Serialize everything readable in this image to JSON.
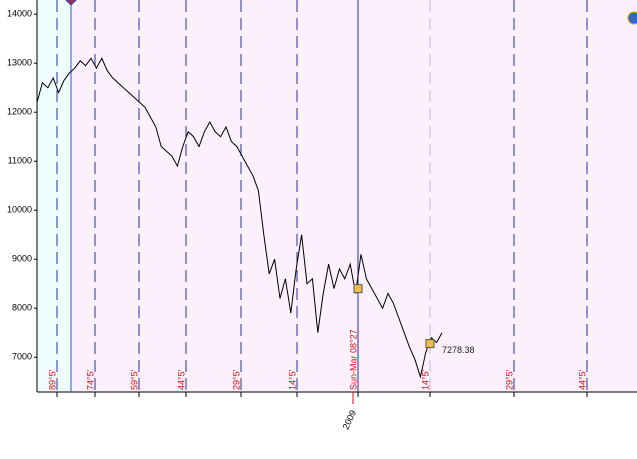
{
  "chart_data": {
    "type": "line",
    "values": [
      12200,
      12600,
      12500,
      12700,
      12400,
      12650,
      12800,
      12900,
      13050,
      12950,
      13100,
      12900,
      13100,
      12850,
      12700,
      12600,
      12500,
      12400,
      12300,
      12200,
      12100,
      11900,
      11700,
      11300,
      11200,
      11100,
      10900,
      11300,
      11600,
      11500,
      11300,
      11600,
      11800,
      11600,
      11500,
      11700,
      11400,
      11300,
      11100,
      10900,
      10700,
      10400,
      9500,
      8700,
      9000,
      8200,
      8600,
      7900,
      8800,
      9500,
      8500,
      8600,
      7500,
      8300,
      8900,
      8400,
      8800,
      8600,
      8900,
      8300,
      9100,
      8600,
      8400,
      8200,
      8000,
      8300,
      8100,
      7800,
      7500,
      7200,
      6950,
      6600,
      7100,
      7400,
      7300,
      7500
    ],
    "color": "#000000",
    "ylim": [
      6290,
      14290
    ],
    "yticks": [
      7000,
      8000,
      9000,
      10000,
      11000,
      12000,
      13000,
      14000
    ],
    "cycle_labels": [
      "89°5'",
      "74°5'",
      "59°5'",
      "44°5'",
      "29°5'",
      "14°5'",
      "Sun-Mar 08°27",
      "14°5'",
      "29°5'",
      "44°5'"
    ],
    "markers": [
      {
        "value": 8400
      },
      {
        "value": 7278.38,
        "label": "7278.38"
      }
    ],
    "x_label": "2009"
  }
}
